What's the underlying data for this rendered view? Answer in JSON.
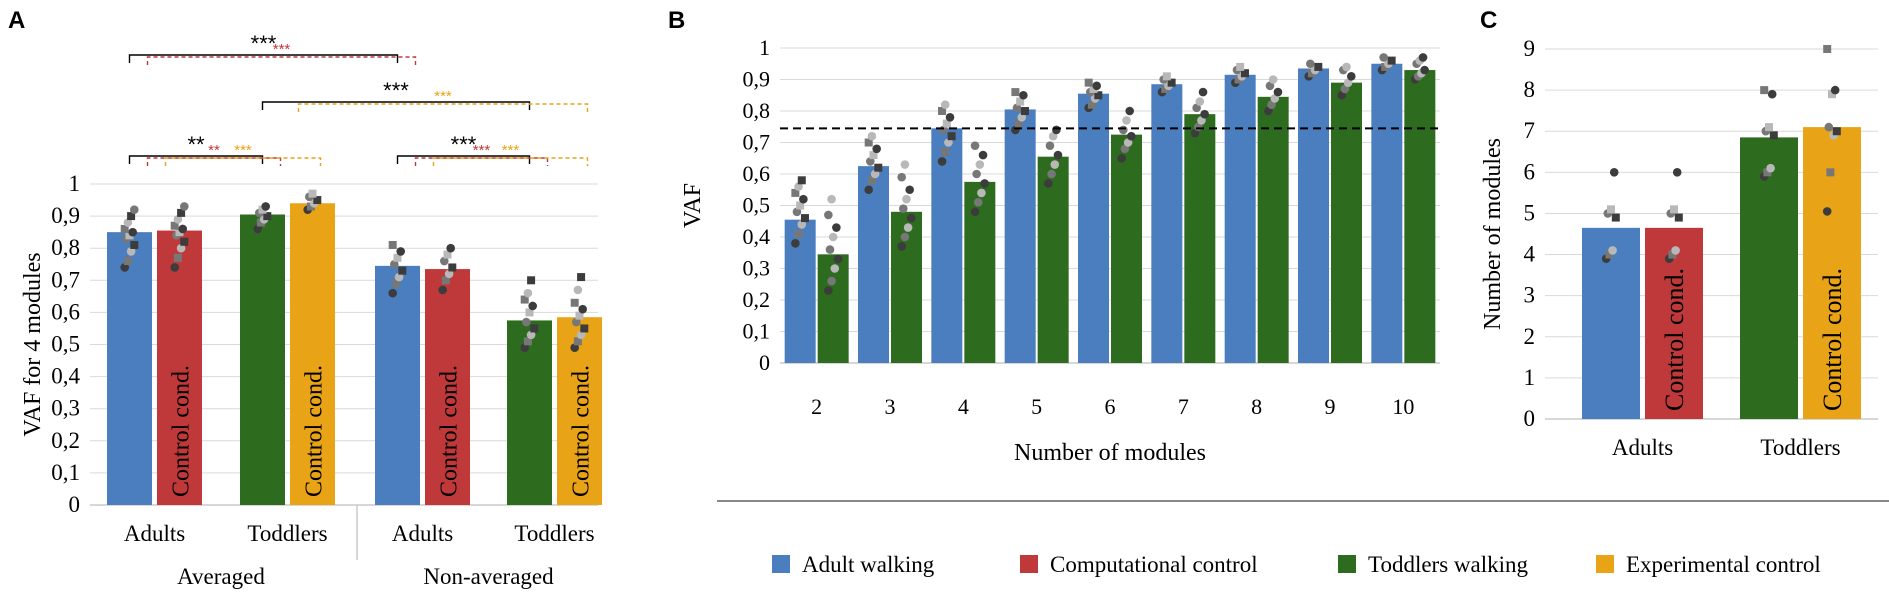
{
  "colors": {
    "adult": "#4a7ebf",
    "computational": "#c0393a",
    "toddler": "#2d6b1f",
    "experimental": "#e8a317",
    "dot_dark": "#3c3c3c",
    "dot_mid": "#777777",
    "dot_light": "#b8b8b8",
    "sig_black": "#000000",
    "sig_red": "#c0393a",
    "sig_orange": "#e8a317"
  },
  "legend": {
    "items": [
      {
        "label": "Adult walking",
        "color": "adult"
      },
      {
        "label": "Computational control",
        "color": "computational"
      },
      {
        "label": "Toddlers walking",
        "color": "toddler"
      },
      {
        "label": "Experimental control",
        "color": "experimental"
      }
    ]
  },
  "chart_data": [
    {
      "panel": "A",
      "type": "bar",
      "ylabel": "VAF for 4 modules",
      "ylim": [
        0,
        1
      ],
      "yticks": [
        "0",
        "0,1",
        "0,2",
        "0,3",
        "0,4",
        "0,5",
        "0,6",
        "0,7",
        "0,8",
        "0,9",
        "1"
      ],
      "bar_label": "Control cond.",
      "groups": [
        {
          "name": "Averaged",
          "subgroups": [
            {
              "name": "Adults",
              "bars": [
                {
                  "series": "adult",
                  "value": 0.85,
                  "inner_label": false,
                  "points": [
                    0.74,
                    0.76,
                    0.79,
                    0.81,
                    0.83,
                    0.84,
                    0.85,
                    0.86,
                    0.88,
                    0.9,
                    0.92
                  ]
                },
                {
                  "series": "computational",
                  "value": 0.855,
                  "inner_label": true,
                  "points": [
                    0.74,
                    0.77,
                    0.8,
                    0.82,
                    0.84,
                    0.85,
                    0.86,
                    0.87,
                    0.89,
                    0.91,
                    0.93
                  ]
                }
              ]
            },
            {
              "name": "Toddlers",
              "bars": [
                {
                  "series": "toddler",
                  "value": 0.905,
                  "inner_label": false,
                  "points": [
                    0.86,
                    0.88,
                    0.89,
                    0.9,
                    0.91,
                    0.92,
                    0.93
                  ]
                },
                {
                  "series": "experimental",
                  "value": 0.94,
                  "inner_label": true,
                  "points": [
                    0.92,
                    0.93,
                    0.94,
                    0.95,
                    0.96,
                    0.97
                  ]
                }
              ]
            }
          ]
        },
        {
          "name": "Non-averaged",
          "subgroups": [
            {
              "name": "Adults",
              "bars": [
                {
                  "series": "adult",
                  "value": 0.745,
                  "inner_label": false,
                  "points": [
                    0.66,
                    0.69,
                    0.71,
                    0.73,
                    0.75,
                    0.77,
                    0.79,
                    0.81
                  ]
                },
                {
                  "series": "computational",
                  "value": 0.735,
                  "inner_label": true,
                  "points": [
                    0.67,
                    0.7,
                    0.72,
                    0.74,
                    0.76,
                    0.78,
                    0.8
                  ]
                }
              ]
            },
            {
              "name": "Toddlers",
              "bars": [
                {
                  "series": "toddler",
                  "value": 0.575,
                  "inner_label": false,
                  "points": [
                    0.49,
                    0.51,
                    0.53,
                    0.55,
                    0.57,
                    0.6,
                    0.62,
                    0.64,
                    0.66,
                    0.7
                  ]
                },
                {
                  "series": "experimental",
                  "value": 0.585,
                  "inner_label": true,
                  "points": [
                    0.49,
                    0.51,
                    0.53,
                    0.55,
                    0.57,
                    0.59,
                    0.61,
                    0.63,
                    0.67,
                    0.71
                  ]
                }
              ]
            }
          ]
        }
      ],
      "significance": [
        {
          "label": "**",
          "tier": 1,
          "color": "sig_black",
          "from": [
            0,
            0
          ],
          "to": [
            0,
            1
          ],
          "style": "solid"
        },
        {
          "label": "**",
          "tier": 1,
          "color": "sig_red",
          "from": [
            0,
            0
          ],
          "to": [
            0,
            1
          ],
          "style": "dashed"
        },
        {
          "label": "***",
          "tier": 1,
          "color": "sig_orange",
          "from": [
            0,
            0
          ],
          "to": [
            0,
            1
          ],
          "style": "dashed"
        },
        {
          "label": "***",
          "tier": 1,
          "color": "sig_black",
          "from": [
            1,
            0
          ],
          "to": [
            1,
            1
          ],
          "style": "solid"
        },
        {
          "label": "***",
          "tier": 1,
          "color": "sig_red",
          "from": [
            1,
            0
          ],
          "to": [
            1,
            1
          ],
          "style": "dashed"
        },
        {
          "label": "***",
          "tier": 1,
          "color": "sig_orange",
          "from": [
            1,
            0
          ],
          "to": [
            1,
            1
          ],
          "style": "dashed"
        },
        {
          "label": "***",
          "tier": 2,
          "color": "sig_black",
          "from": [
            0,
            1
          ],
          "to": [
            1,
            1
          ],
          "style": "solid"
        },
        {
          "label": "***",
          "tier": 2,
          "color": "sig_orange",
          "from": [
            0,
            1
          ],
          "to": [
            1,
            1
          ],
          "style": "dashed"
        },
        {
          "label": "***",
          "tier": 3,
          "color": "sig_black",
          "from": [
            0,
            0
          ],
          "to": [
            1,
            0
          ],
          "style": "solid"
        },
        {
          "label": "***",
          "tier": 3,
          "color": "sig_red",
          "from": [
            0,
            0
          ],
          "to": [
            1,
            0
          ],
          "style": "dashed"
        }
      ]
    },
    {
      "panel": "B",
      "type": "bar",
      "xlabel": "Number of modules",
      "ylabel": "VAF",
      "ylim": [
        0,
        1
      ],
      "yticks": [
        "0",
        "0,1",
        "0,2",
        "0,3",
        "0,4",
        "0,5",
        "0,6",
        "0,7",
        "0,8",
        "0,9",
        "1"
      ],
      "threshold": 0.745,
      "categories": [
        "2",
        "3",
        "4",
        "5",
        "6",
        "7",
        "8",
        "9",
        "10"
      ],
      "series": [
        {
          "name": "Adult walking",
          "color": "adult",
          "values": [
            0.455,
            0.625,
            0.745,
            0.805,
            0.855,
            0.885,
            0.915,
            0.935,
            0.95
          ]
        },
        {
          "name": "Toddlers walking",
          "color": "toddler",
          "values": [
            0.345,
            0.48,
            0.575,
            0.655,
            0.725,
            0.79,
            0.845,
            0.89,
            0.93
          ]
        }
      ],
      "points_adult": [
        [
          0.38,
          0.41,
          0.44,
          0.46,
          0.48,
          0.5,
          0.52,
          0.54,
          0.56,
          0.58
        ],
        [
          0.55,
          0.58,
          0.6,
          0.62,
          0.64,
          0.66,
          0.68,
          0.7,
          0.72
        ],
        [
          0.64,
          0.67,
          0.7,
          0.72,
          0.74,
          0.76,
          0.78,
          0.8,
          0.82
        ],
        [
          0.74,
          0.76,
          0.78,
          0.8,
          0.81,
          0.83,
          0.85,
          0.86
        ],
        [
          0.81,
          0.82,
          0.84,
          0.85,
          0.86,
          0.87,
          0.88,
          0.89
        ],
        [
          0.86,
          0.87,
          0.88,
          0.89,
          0.9,
          0.91
        ],
        [
          0.89,
          0.9,
          0.91,
          0.92,
          0.93,
          0.94
        ],
        [
          0.91,
          0.92,
          0.93,
          0.94,
          0.95
        ],
        [
          0.93,
          0.94,
          0.95,
          0.96,
          0.97
        ]
      ],
      "points_toddler": [
        [
          0.23,
          0.26,
          0.3,
          0.33,
          0.36,
          0.4,
          0.43,
          0.47,
          0.52
        ],
        [
          0.37,
          0.4,
          0.43,
          0.46,
          0.49,
          0.52,
          0.55,
          0.59,
          0.63
        ],
        [
          0.48,
          0.51,
          0.54,
          0.57,
          0.6,
          0.63,
          0.66,
          0.69
        ],
        [
          0.57,
          0.6,
          0.63,
          0.66,
          0.69,
          0.72,
          0.74
        ],
        [
          0.65,
          0.68,
          0.7,
          0.72,
          0.74,
          0.77,
          0.8
        ],
        [
          0.73,
          0.75,
          0.77,
          0.79,
          0.81,
          0.83,
          0.86
        ],
        [
          0.8,
          0.82,
          0.84,
          0.86,
          0.88,
          0.9
        ],
        [
          0.85,
          0.87,
          0.89,
          0.91,
          0.93,
          0.94
        ],
        [
          0.9,
          0.91,
          0.92,
          0.93,
          0.95,
          0.96,
          0.97
        ]
      ]
    },
    {
      "panel": "C",
      "type": "bar",
      "ylabel": "Number of modules",
      "ylim": [
        0,
        9
      ],
      "yticks": [
        "0",
        "1",
        "2",
        "3",
        "4",
        "5",
        "6",
        "7",
        "8",
        "9"
      ],
      "bar_label": "Control cond.",
      "groups": [
        {
          "name": "Adults",
          "bars": [
            {
              "series": "adult",
              "value": 4.65,
              "inner_label": false,
              "points": [
                3.9,
                4.0,
                4.1,
                4.9,
                5.0,
                5.1,
                6.0
              ]
            },
            {
              "series": "computational",
              "value": 4.65,
              "inner_label": true,
              "points": [
                3.9,
                4.0,
                4.1,
                4.9,
                5.0,
                5.1,
                6.0
              ]
            }
          ]
        },
        {
          "name": "Toddlers",
          "bars": [
            {
              "series": "toddler",
              "value": 6.85,
              "inner_label": false,
              "points": [
                5.9,
                6.0,
                6.1,
                6.9,
                7.0,
                7.1,
                7.9,
                8.0
              ]
            },
            {
              "series": "experimental",
              "value": 7.1,
              "inner_label": true,
              "points": [
                5.05,
                6.0,
                6.9,
                7.0,
                7.1,
                7.9,
                8.0,
                9.0
              ]
            }
          ]
        }
      ]
    }
  ],
  "panels": {
    "a": "A",
    "b": "B",
    "c": "C"
  }
}
